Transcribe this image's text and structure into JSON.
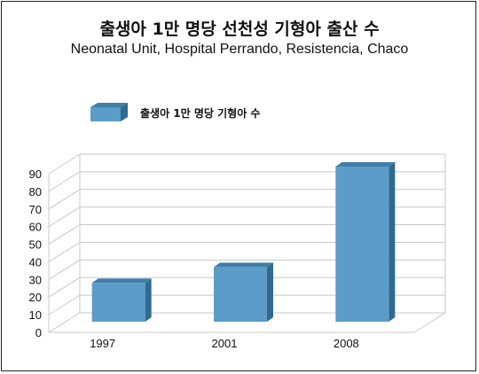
{
  "chart_data": {
    "type": "bar",
    "title": "출생아 1만 명당 선천성 기형아 출산 수",
    "subtitle": "Neonatal Unit, Hospital Perrando, Resistencia, Chaco",
    "categories": [
      "1997",
      "2001",
      "2008"
    ],
    "series": [
      {
        "name": "출생아 1만 명당 기형아 수",
        "values": [
          22,
          31,
          88
        ]
      }
    ],
    "ylim": [
      0,
      90
    ],
    "yticks": [
      "0",
      "10",
      "20",
      "30",
      "40",
      "50",
      "60",
      "70",
      "80",
      "90"
    ],
    "grid": true,
    "style": "3d",
    "legend_position": "top-left",
    "colors": {
      "bar_front": "#5b9cc8",
      "bar_top": "#3f7fa8",
      "bar_side": "#2f6a91",
      "grid": "#c8c8c8"
    }
  }
}
